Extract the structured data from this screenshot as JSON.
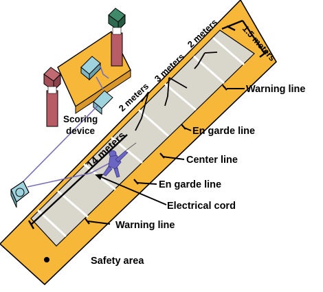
{
  "colors": {
    "safety_area": "#f7b83a",
    "piste": "#d9d7cc",
    "piste_outline": "#ffffff",
    "figure": "#6b66c4",
    "light_green": "#3f8a6b",
    "light_red": "#b85c66",
    "scoring_box": "#9fd3dd"
  },
  "labels": {
    "length_total": "14 meters",
    "segment_a": "2 meters",
    "segment_b": "3 meters",
    "segment_c": "2 meters",
    "end_width": "1.5 meters",
    "warning_line_top": "Warning line",
    "en_garde_top": "En garde line",
    "center_line": "Center line",
    "en_garde_bottom": "En garde line",
    "electrical_cord": "Electrical cord",
    "warning_line_bottom": "Warning line",
    "safety_area": "Safety area",
    "scoring_device_line1": "Scoring",
    "scoring_device_line2": "device"
  }
}
